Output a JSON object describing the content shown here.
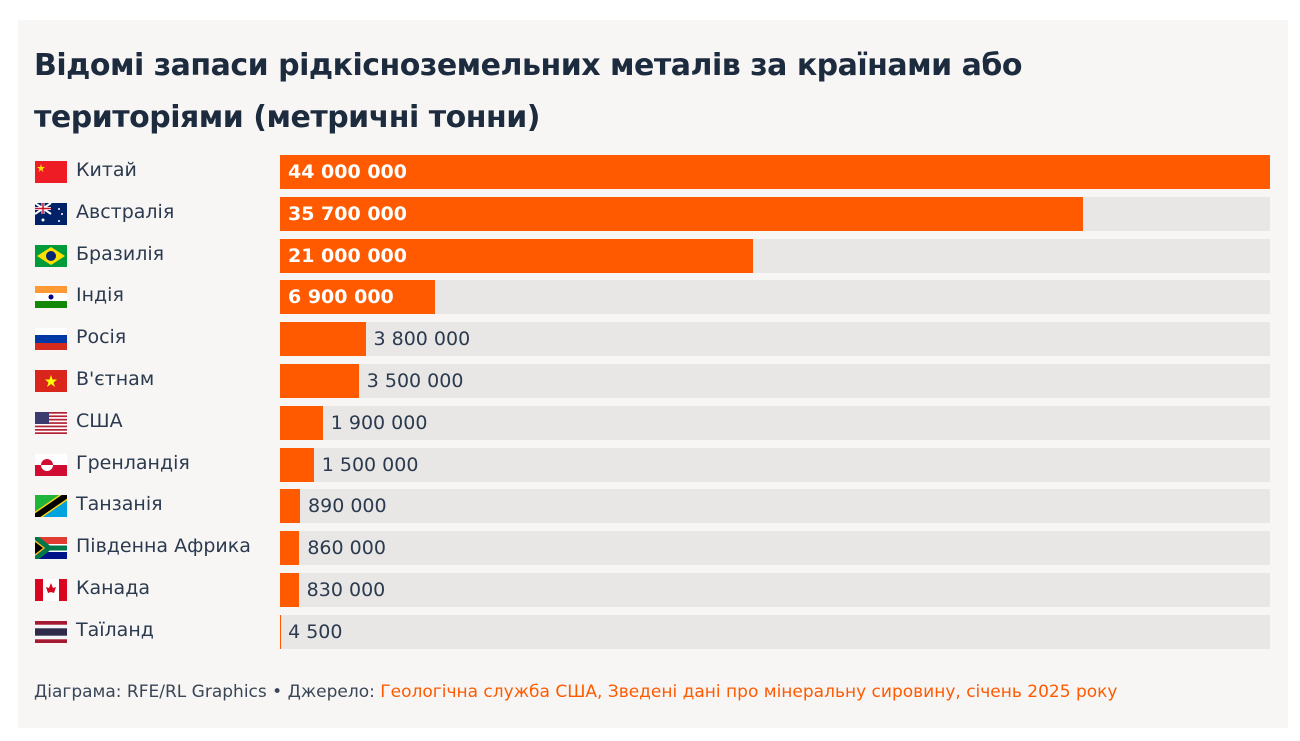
{
  "chart_data": {
    "type": "bar",
    "orientation": "horizontal",
    "title": "Відомі запаси рідкісноземельних металів за країнами або територіями (метричні тонни)",
    "categories": [
      "Китай",
      "Австралія",
      "Бразилія",
      "Індія",
      "Росія",
      "В'єтнам",
      "США",
      "Гренландія",
      "Танзанія",
      "Південна Африка",
      "Канада",
      "Таїланд"
    ],
    "values": [
      44000000,
      35700000,
      21000000,
      6900000,
      3800000,
      3500000,
      1900000,
      1500000,
      890000,
      860000,
      830000,
      4500
    ],
    "value_labels": [
      "44 000 000",
      "35 700 000",
      "21 000 000",
      "6 900 000",
      "3 800 000",
      "3 500 000",
      "1 900 000",
      "1 500 000",
      "890 000",
      "860 000",
      "830 000",
      "4 500"
    ],
    "flags": [
      "china-flag",
      "australia-flag",
      "brazil-flag",
      "india-flag",
      "russia-flag",
      "vietnam-flag",
      "usa-flag",
      "greenland-flag",
      "tanzania-flag",
      "south-africa-flag",
      "canada-flag",
      "thailand-flag"
    ],
    "xlim": [
      0,
      44000000
    ],
    "grid": false,
    "bar_color": "#ff5a00",
    "track_color": "#e8e7e6"
  },
  "footer": {
    "credit": "Діаграма: RFE/RL Graphics • Джерело: ",
    "source": "Геологічна служба США, Зведені дані про мінеральну сировину, січень 2025 року"
  }
}
